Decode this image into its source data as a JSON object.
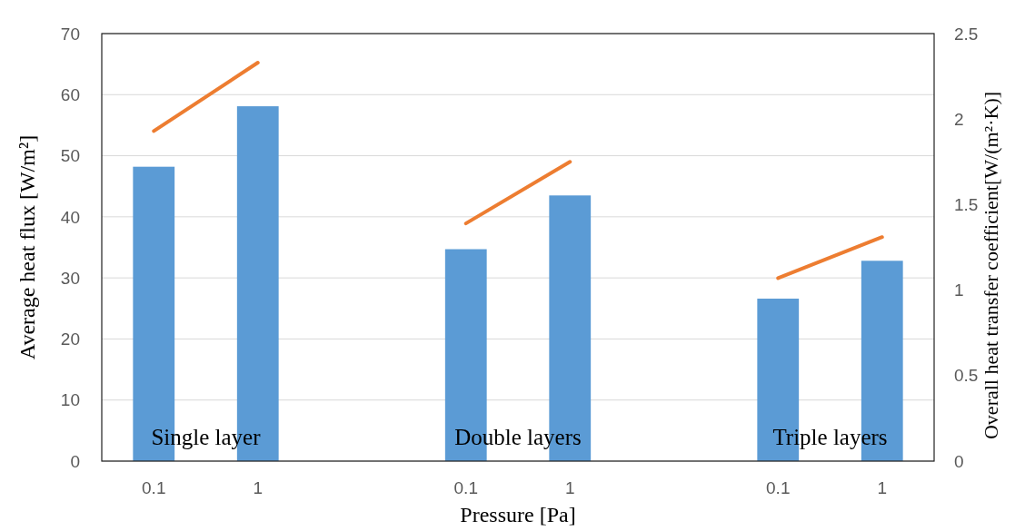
{
  "chart_data": {
    "type": "bar",
    "xlabel": "Pressure [Pa]",
    "ylabel": "Average heat flux [W/m²]",
    "y2label": "Overall heat transfer coefficient[W/(m²·K)]",
    "categories": [
      "0.1",
      "1",
      null,
      "0.1",
      "1",
      null,
      "0.1",
      "1"
    ],
    "series": [
      {
        "color": "#5b9bd5",
        "values": [
          48.2,
          58.1,
          null,
          34.7,
          43.5,
          null,
          26.6,
          32.8
        ]
      },
      {
        "type": "line",
        "axis": "y2",
        "color": "#ed7d31",
        "values": [
          1.93,
          2.33,
          null,
          1.39,
          1.75,
          null,
          1.07,
          1.31
        ]
      }
    ],
    "ylim": [
      0,
      70
    ],
    "yticks": [
      0,
      10,
      20,
      30,
      40,
      50,
      60,
      70
    ],
    "y2lim": [
      0,
      2.5
    ],
    "y2ticks": [
      0,
      0.5,
      1,
      1.5,
      2,
      2.5
    ],
    "grid": "y",
    "marker": "none",
    "line_style": "solid",
    "annotations": [
      "Single layer",
      "Double layers",
      "Triple layers"
    ]
  }
}
